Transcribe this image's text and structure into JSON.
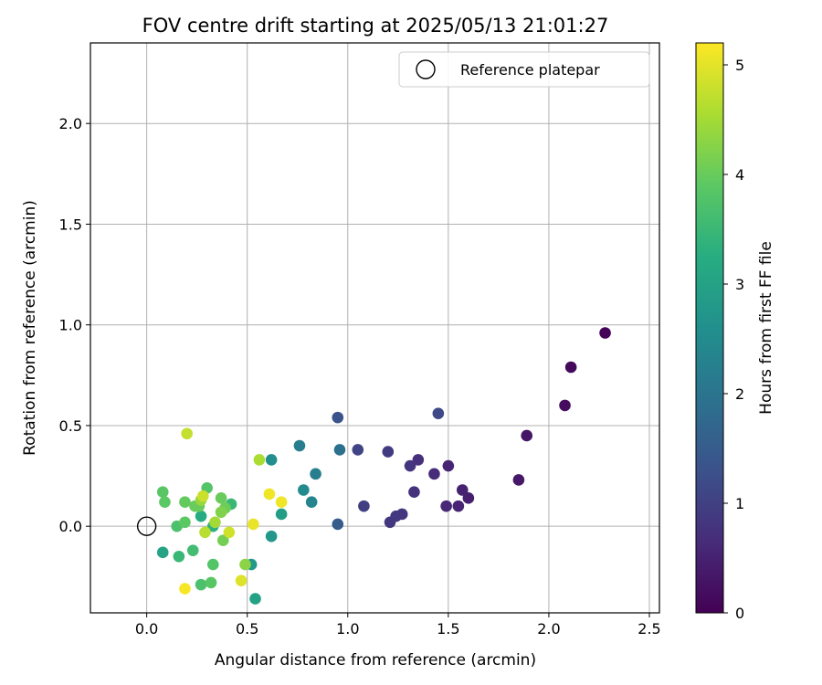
{
  "chart_data": {
    "type": "scatter",
    "title": "FOV centre drift starting at 2025/05/13 21:01:27",
    "xlabel": "Angular distance from reference (arcmin)",
    "ylabel": "Rotation from reference (arcmin)",
    "xlim": [
      -0.28,
      2.55
    ],
    "ylim": [
      -0.43,
      2.4
    ],
    "x_ticks": [
      0.0,
      0.5,
      1.0,
      1.5,
      2.0,
      2.5
    ],
    "x_tick_labels": [
      "0.0",
      "0.5",
      "1.0",
      "1.5",
      "2.0",
      "2.5"
    ],
    "y_ticks": [
      0.0,
      0.5,
      1.0,
      1.5,
      2.0
    ],
    "y_tick_labels": [
      "0.0",
      "0.5",
      "1.0",
      "1.5",
      "2.0"
    ],
    "grid": true,
    "legend": {
      "position": "top-right",
      "label": "Reference platepar"
    },
    "reference_point": {
      "x": 0.0,
      "y": 0.0
    },
    "colorbar": {
      "label": "Hours from first FF file",
      "min": 0,
      "max": 5.2,
      "ticks": [
        0,
        1,
        2,
        3,
        4,
        5
      ],
      "tick_labels": [
        "0",
        "1",
        "2",
        "3",
        "4",
        "5"
      ],
      "colormap": "viridis"
    },
    "points": [
      {
        "x": 2.28,
        "y": 0.96,
        "c": 0.05
      },
      {
        "x": 2.11,
        "y": 0.79,
        "c": 0.12
      },
      {
        "x": 2.08,
        "y": 0.6,
        "c": 0.18
      },
      {
        "x": 1.89,
        "y": 0.45,
        "c": 0.3
      },
      {
        "x": 1.85,
        "y": 0.23,
        "c": 0.35
      },
      {
        "x": 1.6,
        "y": 0.14,
        "c": 0.45
      },
      {
        "x": 1.57,
        "y": 0.18,
        "c": 0.5
      },
      {
        "x": 1.55,
        "y": 0.1,
        "c": 0.55
      },
      {
        "x": 1.5,
        "y": 0.3,
        "c": 0.55
      },
      {
        "x": 1.49,
        "y": 0.1,
        "c": 0.6
      },
      {
        "x": 1.43,
        "y": 0.26,
        "c": 0.65
      },
      {
        "x": 1.35,
        "y": 0.33,
        "c": 0.7
      },
      {
        "x": 1.33,
        "y": 0.17,
        "c": 0.75
      },
      {
        "x": 1.31,
        "y": 0.3,
        "c": 0.8
      },
      {
        "x": 1.27,
        "y": 0.06,
        "c": 0.8
      },
      {
        "x": 1.24,
        "y": 0.05,
        "c": 0.85
      },
      {
        "x": 1.21,
        "y": 0.02,
        "c": 0.85
      },
      {
        "x": 1.2,
        "y": 0.37,
        "c": 0.9
      },
      {
        "x": 1.08,
        "y": 0.1,
        "c": 0.95
      },
      {
        "x": 1.05,
        "y": 0.38,
        "c": 1.05
      },
      {
        "x": 1.45,
        "y": 0.56,
        "c": 1.15
      },
      {
        "x": 0.95,
        "y": 0.54,
        "c": 1.35
      },
      {
        "x": 0.95,
        "y": 0.01,
        "c": 1.5
      },
      {
        "x": 0.96,
        "y": 0.38,
        "c": 1.9
      },
      {
        "x": 0.84,
        "y": 0.26,
        "c": 2.2
      },
      {
        "x": 0.76,
        "y": 0.4,
        "c": 2.2
      },
      {
        "x": 0.82,
        "y": 0.12,
        "c": 2.35
      },
      {
        "x": 0.78,
        "y": 0.18,
        "c": 2.5
      },
      {
        "x": 0.62,
        "y": 0.33,
        "c": 2.55
      },
      {
        "x": 0.62,
        "y": -0.05,
        "c": 2.75
      },
      {
        "x": 0.67,
        "y": 0.06,
        "c": 2.9
      },
      {
        "x": 0.52,
        "y": -0.19,
        "c": 2.8
      },
      {
        "x": 0.54,
        "y": -0.36,
        "c": 3.0
      },
      {
        "x": 0.08,
        "y": -0.13,
        "c": 3.05
      },
      {
        "x": 0.27,
        "y": 0.05,
        "c": 3.2
      },
      {
        "x": 0.33,
        "y": 0.0,
        "c": 3.35
      },
      {
        "x": 0.42,
        "y": 0.11,
        "c": 3.5
      },
      {
        "x": 0.16,
        "y": -0.15,
        "c": 3.5
      },
      {
        "x": 0.23,
        "y": -0.12,
        "c": 3.6
      },
      {
        "x": 0.27,
        "y": -0.29,
        "c": 3.7
      },
      {
        "x": 0.15,
        "y": -0.0,
        "c": 3.7
      },
      {
        "x": 0.3,
        "y": 0.19,
        "c": 3.8
      },
      {
        "x": 0.33,
        "y": -0.19,
        "c": 3.8
      },
      {
        "x": 0.32,
        "y": -0.28,
        "c": 3.85
      },
      {
        "x": 0.08,
        "y": 0.17,
        "c": 3.85
      },
      {
        "x": 0.19,
        "y": 0.02,
        "c": 3.9
      },
      {
        "x": 0.09,
        "y": 0.12,
        "c": 3.9
      },
      {
        "x": 0.19,
        "y": 0.12,
        "c": 3.95
      },
      {
        "x": 0.24,
        "y": 0.1,
        "c": 4.0
      },
      {
        "x": 0.26,
        "y": 0.1,
        "c": 4.0
      },
      {
        "x": 0.37,
        "y": 0.14,
        "c": 4.0
      },
      {
        "x": 0.39,
        "y": 0.09,
        "c": 4.05
      },
      {
        "x": 0.38,
        "y": -0.07,
        "c": 4.1
      },
      {
        "x": 0.37,
        "y": 0.07,
        "c": 4.2
      },
      {
        "x": 0.49,
        "y": -0.19,
        "c": 4.3
      },
      {
        "x": 0.27,
        "y": 0.13,
        "c": 4.4
      },
      {
        "x": 0.34,
        "y": 0.02,
        "c": 4.5
      },
      {
        "x": 0.56,
        "y": 0.33,
        "c": 4.55
      },
      {
        "x": 0.29,
        "y": -0.03,
        "c": 4.65
      },
      {
        "x": 0.2,
        "y": 0.46,
        "c": 4.75
      },
      {
        "x": 0.28,
        "y": 0.15,
        "c": 4.8
      },
      {
        "x": 0.41,
        "y": -0.03,
        "c": 4.85
      },
      {
        "x": 0.47,
        "y": -0.27,
        "c": 4.95
      },
      {
        "x": 0.53,
        "y": 0.01,
        "c": 5.05
      },
      {
        "x": 0.61,
        "y": 0.16,
        "c": 5.1
      },
      {
        "x": 0.67,
        "y": 0.12,
        "c": 5.1
      },
      {
        "x": 0.19,
        "y": -0.31,
        "c": 5.15
      }
    ]
  }
}
